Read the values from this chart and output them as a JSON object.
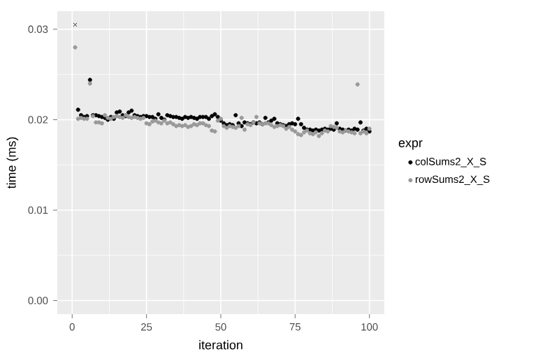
{
  "chart_data": {
    "type": "scatter",
    "xlabel": "iteration",
    "ylabel": "time (ms)",
    "legend_title": "expr",
    "xlim": [
      -5,
      105
    ],
    "ylim": [
      -0.0015,
      0.032
    ],
    "xticks": [
      0,
      25,
      50,
      75,
      100
    ],
    "yticks": [
      {
        "value": 0,
        "label": "0.00"
      },
      {
        "value": 0.01,
        "label": "0.01"
      },
      {
        "value": 0.02,
        "label": "0.02"
      },
      {
        "value": 0.03,
        "label": "0.03"
      }
    ],
    "grid": true,
    "legend": "right",
    "marker": "circle",
    "series": [
      {
        "name": "colSums2_X_S",
        "color": "#000000",
        "x": [
          2,
          3,
          4,
          5,
          6,
          7,
          8,
          9,
          10,
          11,
          12,
          13,
          14,
          15,
          16,
          17,
          18,
          19,
          20,
          21,
          22,
          23,
          24,
          25,
          26,
          27,
          28,
          29,
          30,
          31,
          32,
          33,
          34,
          35,
          36,
          37,
          38,
          39,
          40,
          41,
          42,
          43,
          44,
          45,
          46,
          47,
          48,
          49,
          50,
          51,
          52,
          53,
          54,
          55,
          56,
          57,
          58,
          59,
          60,
          61,
          62,
          63,
          64,
          65,
          66,
          67,
          68,
          69,
          70,
          71,
          72,
          73,
          74,
          75,
          76,
          77,
          78,
          79,
          80,
          81,
          82,
          83,
          84,
          85,
          86,
          87,
          88,
          89,
          90,
          91,
          92,
          93,
          94,
          95,
          96,
          97,
          98,
          99,
          100
        ],
        "values": [
          0.0211,
          0.0205,
          0.0203,
          0.0204,
          0.0244,
          0.0205,
          0.0205,
          0.0204,
          0.0203,
          0.0202,
          0.02,
          0.0203,
          0.0201,
          0.0208,
          0.0209,
          0.0205,
          0.0204,
          0.0208,
          0.021,
          0.0205,
          0.0204,
          0.0203,
          0.0204,
          0.0204,
          0.0203,
          0.0203,
          0.0201,
          0.0206,
          0.0202,
          0.02,
          0.0205,
          0.0204,
          0.0203,
          0.0203,
          0.0202,
          0.0201,
          0.0203,
          0.0202,
          0.0203,
          0.0202,
          0.0201,
          0.0203,
          0.0203,
          0.0203,
          0.0201,
          0.0204,
          0.0206,
          0.0203,
          0.0199,
          0.0196,
          0.0194,
          0.0195,
          0.0194,
          0.0205,
          0.0196,
          0.0193,
          0.0197,
          0.0196,
          0.0195,
          0.0197,
          0.0196,
          0.0197,
          0.0195,
          0.0202,
          0.0197,
          0.0199,
          0.0201,
          0.0196,
          0.0195,
          0.0194,
          0.0193,
          0.0195,
          0.0196,
          0.0195,
          0.0201,
          0.0195,
          0.0191,
          0.0189,
          0.0189,
          0.0188,
          0.0189,
          0.0188,
          0.0189,
          0.019,
          0.0189,
          0.019,
          0.0189,
          0.0196,
          0.019,
          0.0189,
          0.0188,
          0.0189,
          0.0188,
          0.019,
          0.0189,
          0.0197,
          0.0188,
          0.019,
          0.0187
        ]
      },
      {
        "name": "rowSums2_X_S",
        "color": "#999999",
        "x": [
          1,
          2,
          3,
          4,
          5,
          6,
          7,
          8,
          9,
          10,
          11,
          12,
          13,
          14,
          15,
          16,
          17,
          18,
          19,
          20,
          21,
          22,
          23,
          24,
          25,
          26,
          27,
          28,
          29,
          30,
          31,
          32,
          33,
          34,
          35,
          36,
          37,
          38,
          39,
          40,
          41,
          42,
          43,
          44,
          45,
          46,
          47,
          48,
          49,
          50,
          51,
          52,
          53,
          54,
          55,
          56,
          57,
          58,
          59,
          60,
          61,
          62,
          63,
          64,
          65,
          66,
          67,
          68,
          69,
          70,
          71,
          72,
          73,
          74,
          75,
          76,
          77,
          78,
          79,
          80,
          81,
          82,
          83,
          84,
          85,
          86,
          87,
          88,
          89,
          90,
          91,
          92,
          93,
          94,
          95,
          96,
          97,
          98,
          99,
          100
        ],
        "values": [
          0.028,
          0.0201,
          0.0202,
          0.0201,
          0.0201,
          0.024,
          0.0204,
          0.0197,
          0.0197,
          0.0196,
          0.0205,
          0.0202,
          0.0201,
          0.0203,
          0.0204,
          0.0203,
          0.0202,
          0.0205,
          0.0203,
          0.0202,
          0.0203,
          0.0202,
          0.0201,
          0.0202,
          0.0196,
          0.0195,
          0.0198,
          0.0199,
          0.0197,
          0.0196,
          0.0199,
          0.0196,
          0.0197,
          0.0195,
          0.0193,
          0.0194,
          0.0193,
          0.0194,
          0.0192,
          0.0193,
          0.0195,
          0.0194,
          0.0196,
          0.0196,
          0.0194,
          0.0193,
          0.0188,
          0.0187,
          0.0199,
          0.0201,
          0.0193,
          0.0191,
          0.0193,
          0.0192,
          0.0191,
          0.0193,
          0.0202,
          0.0189,
          0.0195,
          0.0194,
          0.0197,
          0.0203,
          0.0196,
          0.0195,
          0.0196,
          0.0196,
          0.0194,
          0.0192,
          0.0193,
          0.0194,
          0.0193,
          0.019,
          0.0192,
          0.0189,
          0.0187,
          0.0184,
          0.0183,
          0.0186,
          0.0188,
          0.0185,
          0.0184,
          0.0186,
          0.0182,
          0.0185,
          0.0188,
          0.0187,
          0.0193,
          0.0192,
          0.0191,
          0.0187,
          0.0186,
          0.0188,
          0.0187,
          0.0186,
          0.0185,
          0.0239,
          0.0185,
          0.0187,
          0.0185,
          0.019
        ]
      },
      {
        "color": "#000000",
        "marker": "cross",
        "x": [
          1
        ],
        "values": [
          0.0305
        ]
      }
    ]
  }
}
